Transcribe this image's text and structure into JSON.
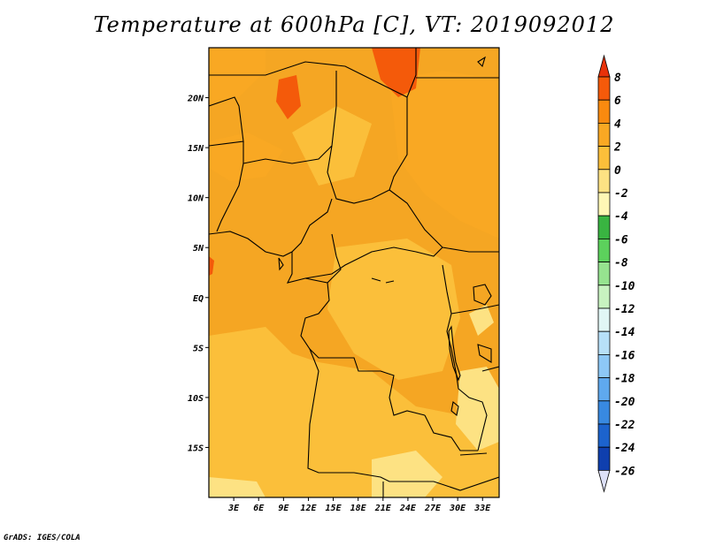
{
  "title": "Temperature at 600hPa [C], VT: 2019092012",
  "credit": "GrADS: IGES/COLA",
  "map": {
    "lon_range": [
      0,
      35
    ],
    "lat_range": [
      -20,
      25
    ],
    "lat_ticks": [
      {
        "value": 20,
        "label": "20N"
      },
      {
        "value": 15,
        "label": "15N"
      },
      {
        "value": 10,
        "label": "10N"
      },
      {
        "value": 5,
        "label": "5N"
      },
      {
        "value": 0,
        "label": "EQ"
      },
      {
        "value": -5,
        "label": "5S"
      },
      {
        "value": -10,
        "label": "10S"
      },
      {
        "value": -15,
        "label": "15S"
      }
    ],
    "lon_ticks": [
      {
        "value": 3,
        "label": "3E"
      },
      {
        "value": 6,
        "label": "6E"
      },
      {
        "value": 9,
        "label": "9E"
      },
      {
        "value": 12,
        "label": "12E"
      },
      {
        "value": 15,
        "label": "15E"
      },
      {
        "value": 18,
        "label": "18E"
      },
      {
        "value": 21,
        "label": "21E"
      },
      {
        "value": 24,
        "label": "24E"
      },
      {
        "value": 27,
        "label": "27E"
      },
      {
        "value": 30,
        "label": "30E"
      },
      {
        "value": 33,
        "label": "33E"
      }
    ],
    "background_color": "#f5a623"
  },
  "colorbar": {
    "levels": [
      "8",
      "6",
      "4",
      "2",
      "0",
      "-2",
      "-4",
      "-6",
      "-8",
      "-10",
      "-12",
      "-14",
      "-16",
      "-18",
      "-20",
      "-22",
      "-24",
      "-26"
    ],
    "colors": [
      "#e8320a",
      "#f45a0a",
      "#f98a0f",
      "#f9a823",
      "#fbbf3a",
      "#fde283",
      "#fef7b5",
      "#39b441",
      "#5cd15c",
      "#96e38f",
      "#c8f2c0",
      "#e1f6f5",
      "#b7e0f8",
      "#8dc8f6",
      "#5fa9ee",
      "#3889e1",
      "#1c63cd",
      "#0f3fae",
      "#091a78",
      "#dde0f8"
    ],
    "top_arrow_color": "#e8320a",
    "bottom_arrow_color": "#dde0f8"
  }
}
